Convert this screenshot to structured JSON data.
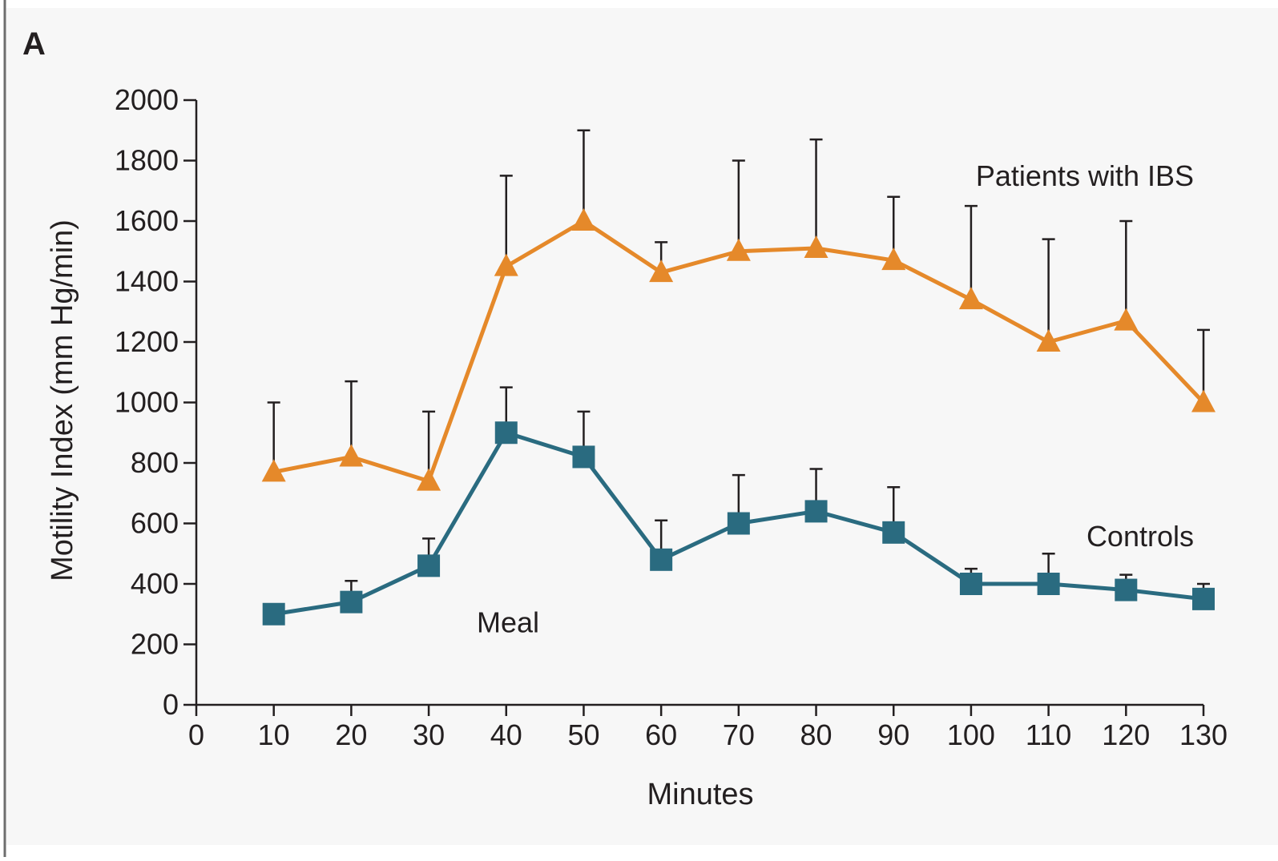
{
  "panel_label": "A",
  "colors": {
    "background": "#f7f7f7",
    "ibs": "#e5892a",
    "controls": "#2a6b80",
    "axis": "#231f20",
    "left_rule": "#6d6d6d"
  },
  "chart_data": {
    "type": "line",
    "title": "",
    "xlabel": "Minutes",
    "ylabel": "Motility Index (mm Hg/min)",
    "xlim": [
      0,
      130
    ],
    "ylim": [
      0,
      2000
    ],
    "x_ticks": [
      0,
      10,
      20,
      30,
      40,
      50,
      60,
      70,
      80,
      90,
      100,
      110,
      120,
      130
    ],
    "y_ticks": [
      0,
      200,
      400,
      600,
      800,
      1000,
      1200,
      1400,
      1600,
      1800,
      2000
    ],
    "grid": false,
    "x": [
      10,
      20,
      30,
      40,
      50,
      60,
      70,
      80,
      90,
      100,
      110,
      120,
      130
    ],
    "series": [
      {
        "name": "Patients with IBS",
        "color": "#e5892a",
        "marker": "triangle",
        "values": [
          770,
          820,
          740,
          1450,
          1600,
          1430,
          1500,
          1510,
          1470,
          1340,
          1200,
          1270,
          1000
        ],
        "error_upper": [
          1000,
          1070,
          970,
          1750,
          1900,
          1530,
          1800,
          1870,
          1680,
          1650,
          1540,
          1600,
          1240
        ]
      },
      {
        "name": "Controls",
        "color": "#2a6b80",
        "marker": "square",
        "values": [
          300,
          340,
          460,
          900,
          820,
          480,
          600,
          640,
          570,
          400,
          400,
          380,
          350
        ],
        "error_upper": [
          300,
          410,
          550,
          1050,
          970,
          610,
          760,
          780,
          720,
          450,
          500,
          430,
          400
        ]
      }
    ],
    "annotations": [
      {
        "text": "Meal",
        "x": 36.2,
        "y": 240
      }
    ]
  }
}
